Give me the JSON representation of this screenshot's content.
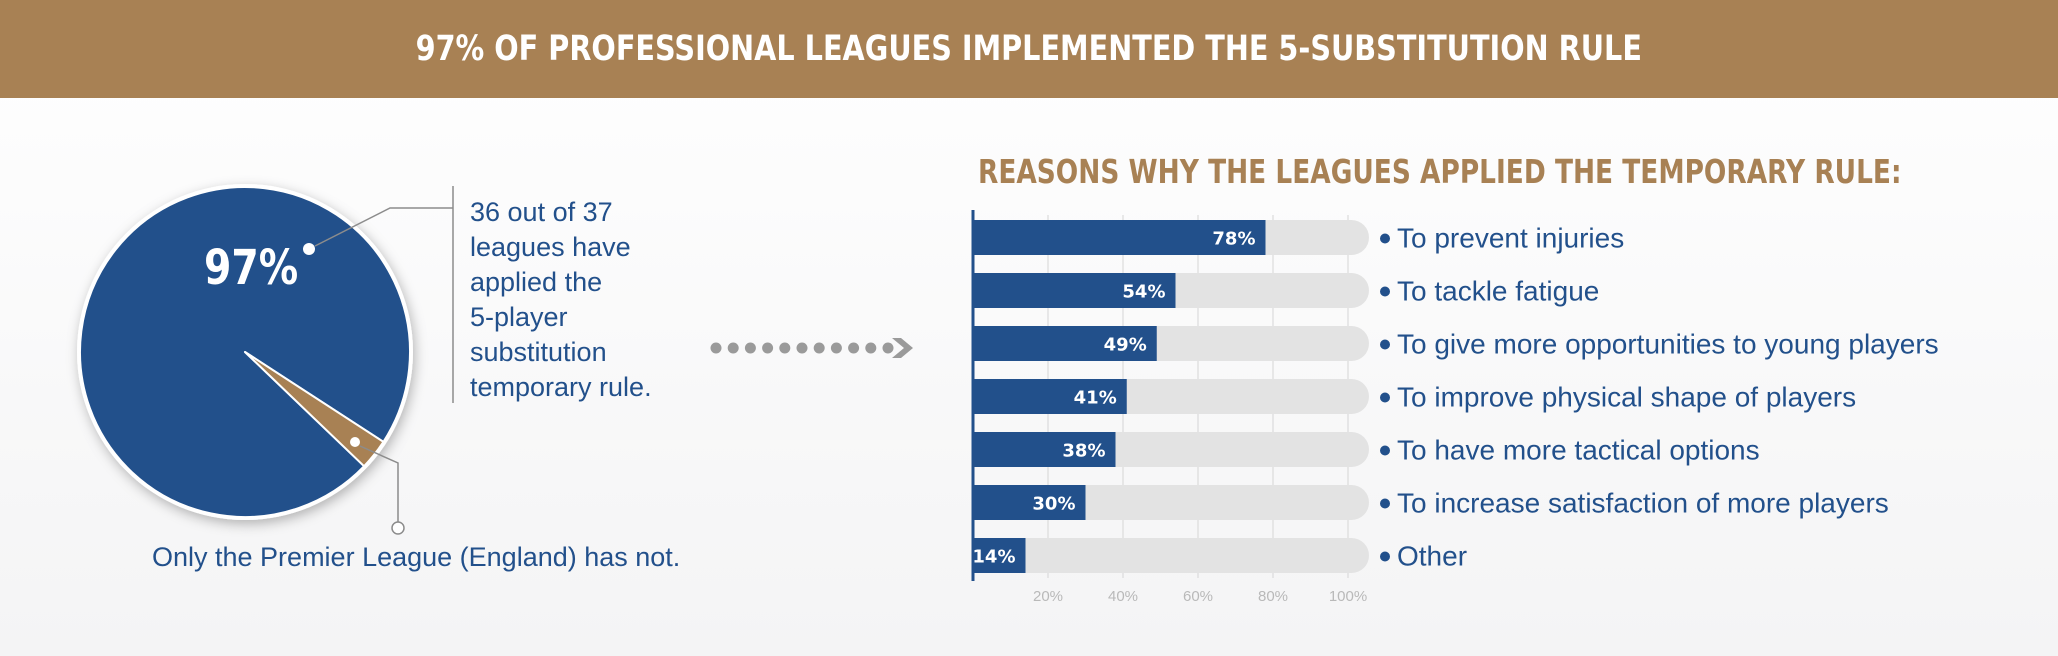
{
  "banner": {
    "title": "97% OF PROFESSIONAL LEAGUES IMPLEMENTED THE 5-SUBSTITUTION RULE"
  },
  "pie": {
    "percent_label": "97%",
    "description_lines": [
      "36 out of 37",
      "leagues have",
      "applied the",
      "5-player",
      "substitution",
      "temporary rule."
    ],
    "note": "Only the Premier League (England) has not."
  },
  "reasons": {
    "title": "REASONS WHY THE LEAGUES APPLIED THE TEMPORARY RULE:"
  },
  "colors": {
    "blue": "#22508b",
    "gold": "#a88154",
    "track": "#e3e3e3",
    "grid": "#d5d5d5"
  },
  "chart_data": [
    {
      "type": "pie",
      "slices": [
        {
          "value": 97,
          "label": "97%",
          "color": "#22508b"
        },
        {
          "value": 3,
          "label": "",
          "color": "#a88154"
        }
      ]
    },
    {
      "type": "bar",
      "orientation": "horizontal",
      "categories": [
        "To prevent injuries",
        "To tackle fatigue",
        "To give more opportunities to young players",
        "To improve  physical shape of players",
        "To have more tactical options",
        "To increase satisfaction of more players",
        "Other"
      ],
      "values": [
        78,
        54,
        49,
        41,
        38,
        30,
        14
      ],
      "value_labels": [
        "78%",
        "54%",
        "49%",
        "41%",
        "38%",
        "30%",
        "14%"
      ],
      "xlim": [
        0,
        100
      ],
      "x_ticks": [
        "20%",
        "40%",
        "60%",
        "80%",
        "100%"
      ],
      "x_tick_values": [
        20,
        40,
        60,
        80,
        100
      ],
      "grid": true
    }
  ]
}
